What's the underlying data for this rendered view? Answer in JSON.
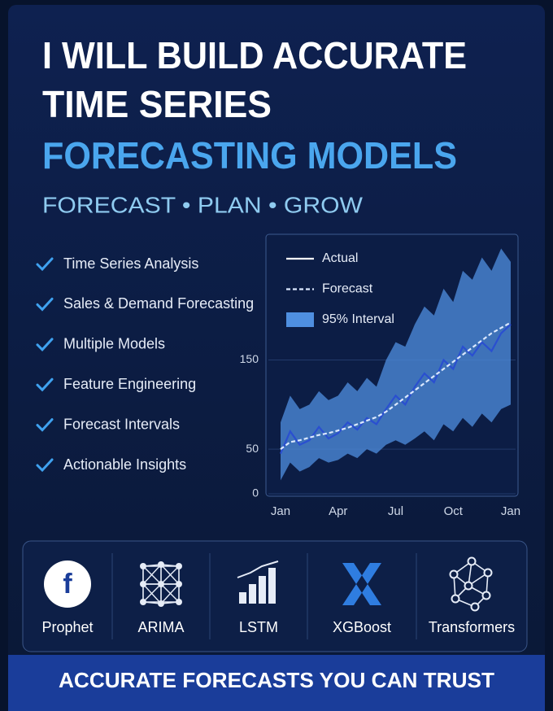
{
  "header": {
    "title_lines": [
      "I WILL BUILD ACCURATE",
      "TIME SERIES"
    ],
    "title_highlight": "FORECASTING MODELS",
    "tagline": "FORECAST • PLAN • GROW"
  },
  "features": [
    "Time Series Analysis",
    "Sales & Demand Forecasting",
    "Multiple Models",
    "Feature Engineering",
    "Forecast Intervals",
    "Actionable Insights"
  ],
  "chart_data": {
    "type": "line",
    "categories": [
      "Jan",
      null,
      null,
      null,
      null,
      null,
      "Apr",
      null,
      null,
      null,
      null,
      null,
      "Jul",
      null,
      null,
      null,
      null,
      null,
      "Oct",
      null,
      null,
      null,
      null,
      null,
      "Jan"
    ],
    "series": [
      {
        "name": "Actual",
        "color": "#2a4fd0",
        "values": [
          45,
          70,
          55,
          60,
          75,
          62,
          68,
          80,
          72,
          85,
          78,
          95,
          110,
          100,
          120,
          135,
          125,
          150,
          140,
          165,
          155,
          170,
          160,
          180,
          190
        ]
      },
      {
        "name": "Forecast",
        "color": "#dbe8ff",
        "dashed": true,
        "values": [
          50,
          58,
          60,
          63,
          66,
          68,
          71,
          74,
          78,
          82,
          86,
          92,
          100,
          108,
          116,
          124,
          132,
          140,
          148,
          156,
          164,
          172,
          180,
          186,
          192
        ]
      },
      {
        "name": "95% Interval",
        "color": "#4f8fe0",
        "lower": [
          15,
          35,
          25,
          30,
          40,
          35,
          38,
          45,
          40,
          50,
          45,
          55,
          60,
          55,
          62,
          70,
          60,
          78,
          70,
          85,
          75,
          90,
          80,
          95,
          100
        ],
        "upper": [
          80,
          110,
          95,
          100,
          115,
          105,
          110,
          125,
          115,
          130,
          120,
          150,
          170,
          165,
          190,
          210,
          200,
          230,
          215,
          250,
          240,
          265,
          250,
          275,
          260
        ]
      }
    ],
    "ylim": [
      0,
      280
    ],
    "yticks": [
      0,
      50,
      150
    ],
    "grid": true,
    "legend": "top-left"
  },
  "tools": [
    "Prophet",
    "ARIMA",
    "LSTM",
    "XGBoost",
    "Transformers"
  ],
  "footer": "ACCURATE FORECASTS YOU CAN TRUST"
}
